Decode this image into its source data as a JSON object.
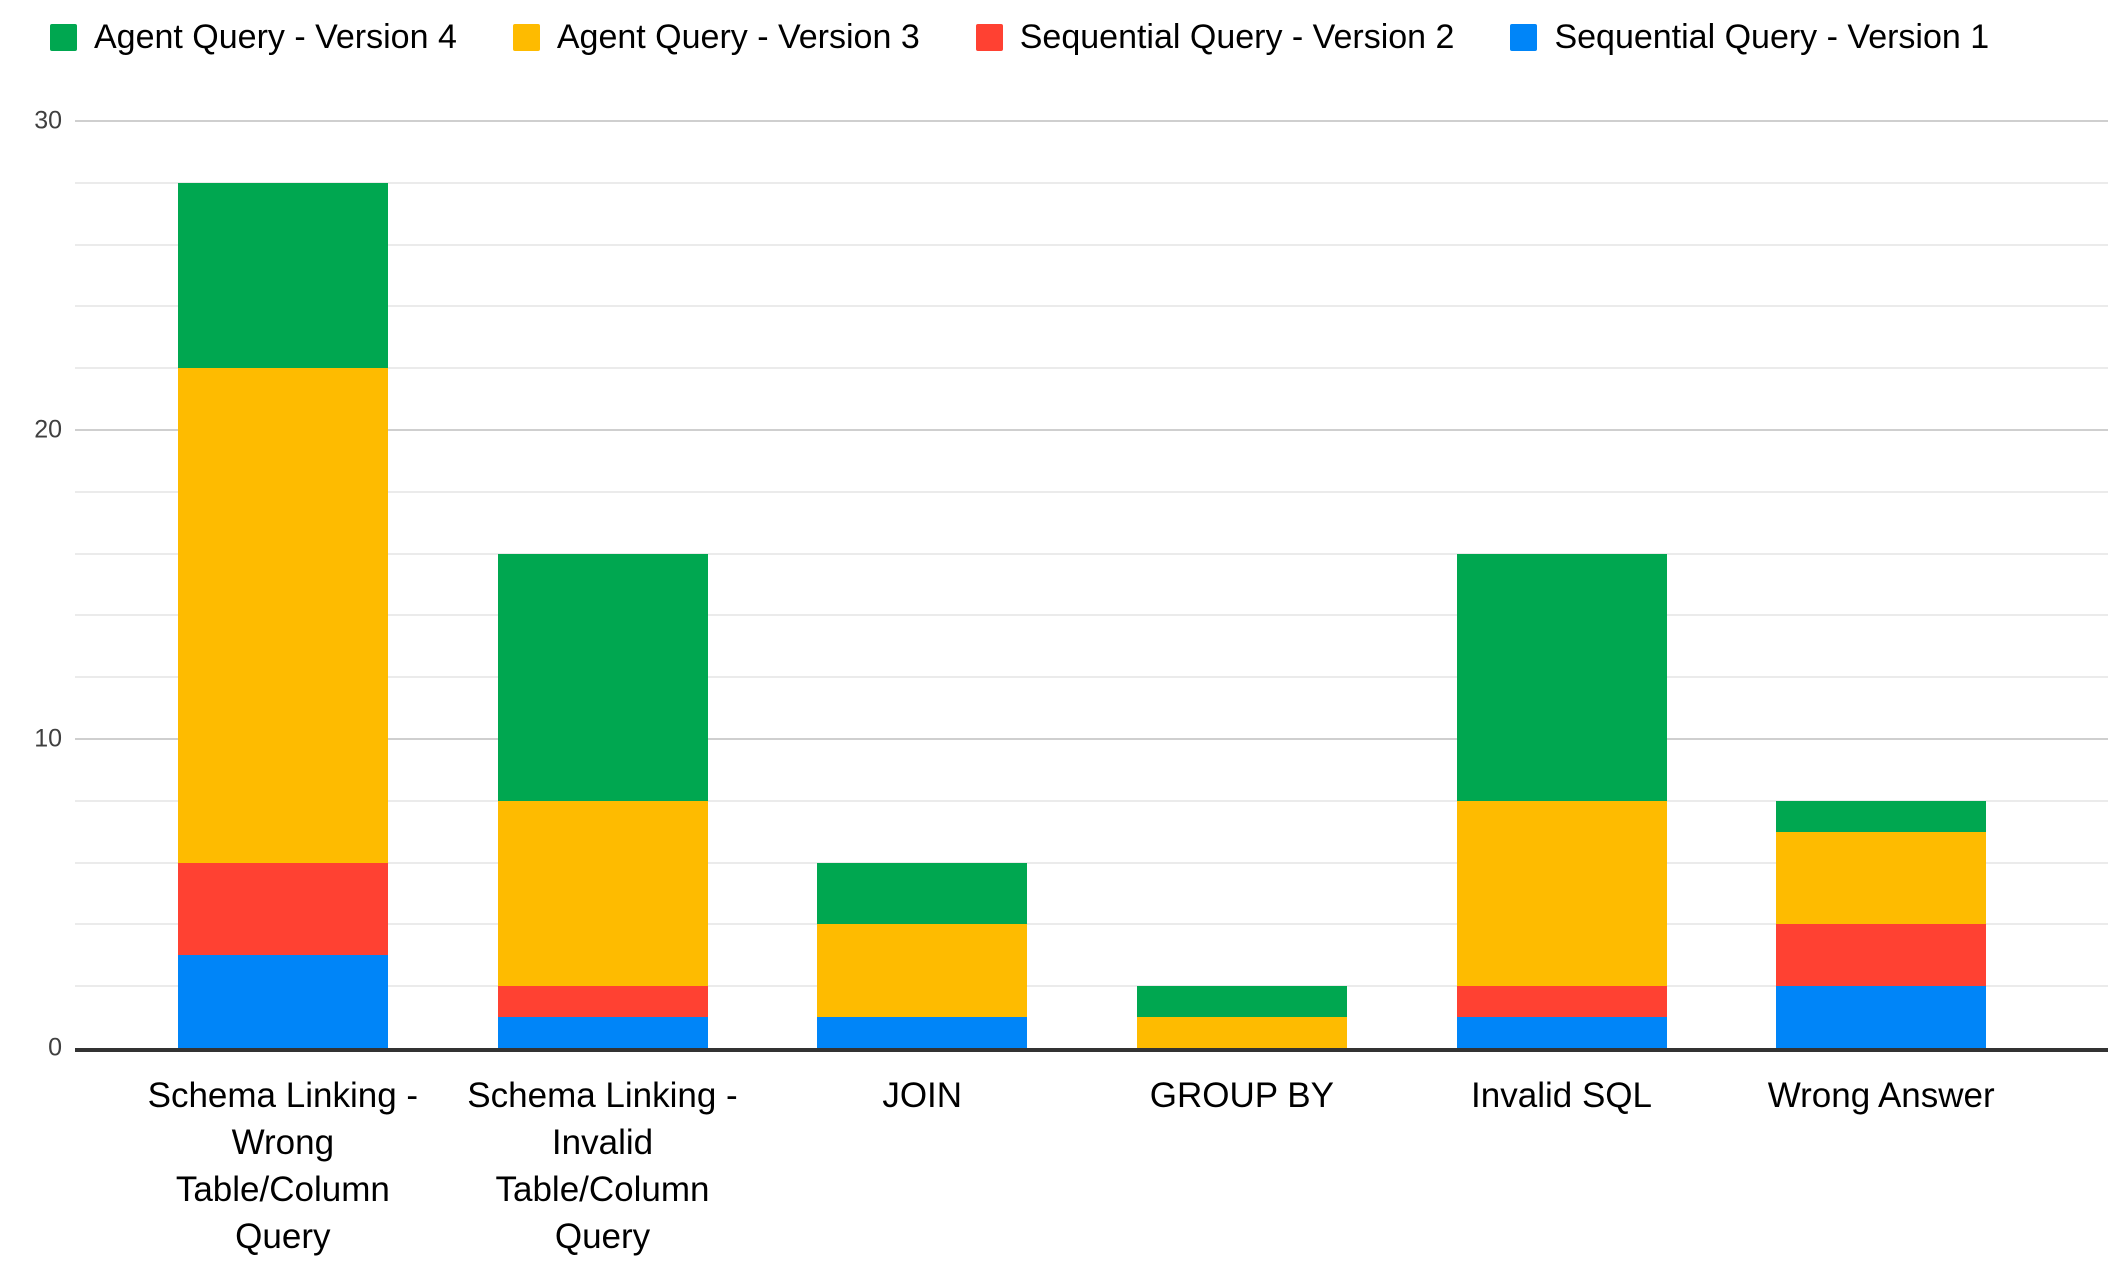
{
  "legend": {
    "items": [
      {
        "label": "Agent Query - Version 4",
        "color": "#00A750"
      },
      {
        "label": "Agent Query - Version 3",
        "color": "#FEBB00"
      },
      {
        "label": "Sequential Query - Version 2",
        "color": "#FF4132"
      },
      {
        "label": "Sequential Query - Version 1",
        "color": "#0085F8"
      }
    ]
  },
  "chart_data": {
    "type": "bar",
    "stacked": true,
    "title": "",
    "xlabel": "",
    "ylabel": "",
    "categories": [
      "Schema Linking - Wrong Table/Column Query",
      "Schema Linking - Invalid Table/Column Query",
      "JOIN",
      "GROUP BY",
      "Invalid SQL",
      "Wrong Answer"
    ],
    "category_display": [
      "Schema Linking -\nWrong\nTable/Column\nQuery",
      "Schema Linking -\nInvalid\nTable/Column\nQuery",
      "JOIN",
      "GROUP BY",
      "Invalid SQL",
      "Wrong Answer"
    ],
    "series": [
      {
        "name": "Sequential Query - Version 1",
        "color": "#0085F8",
        "values": [
          3,
          1,
          1,
          0,
          1,
          2
        ]
      },
      {
        "name": "Sequential Query - Version 2",
        "color": "#FF4132",
        "values": [
          3,
          1,
          0,
          0,
          1,
          2
        ]
      },
      {
        "name": "Agent Query - Version 3",
        "color": "#FEBB00",
        "values": [
          16,
          6,
          3,
          1,
          6,
          3
        ]
      },
      {
        "name": "Agent Query - Version 4",
        "color": "#00A750",
        "values": [
          6,
          8,
          2,
          1,
          8,
          1
        ]
      }
    ],
    "stack_totals": [
      28,
      16,
      6,
      2,
      16,
      8
    ],
    "y_axis": {
      "min": 0,
      "max": 30,
      "major_step": 10,
      "minor_step": 2,
      "tick_labels": [
        "0",
        "10",
        "20",
        "30"
      ]
    },
    "legend_position": "top-left",
    "grid": true
  }
}
